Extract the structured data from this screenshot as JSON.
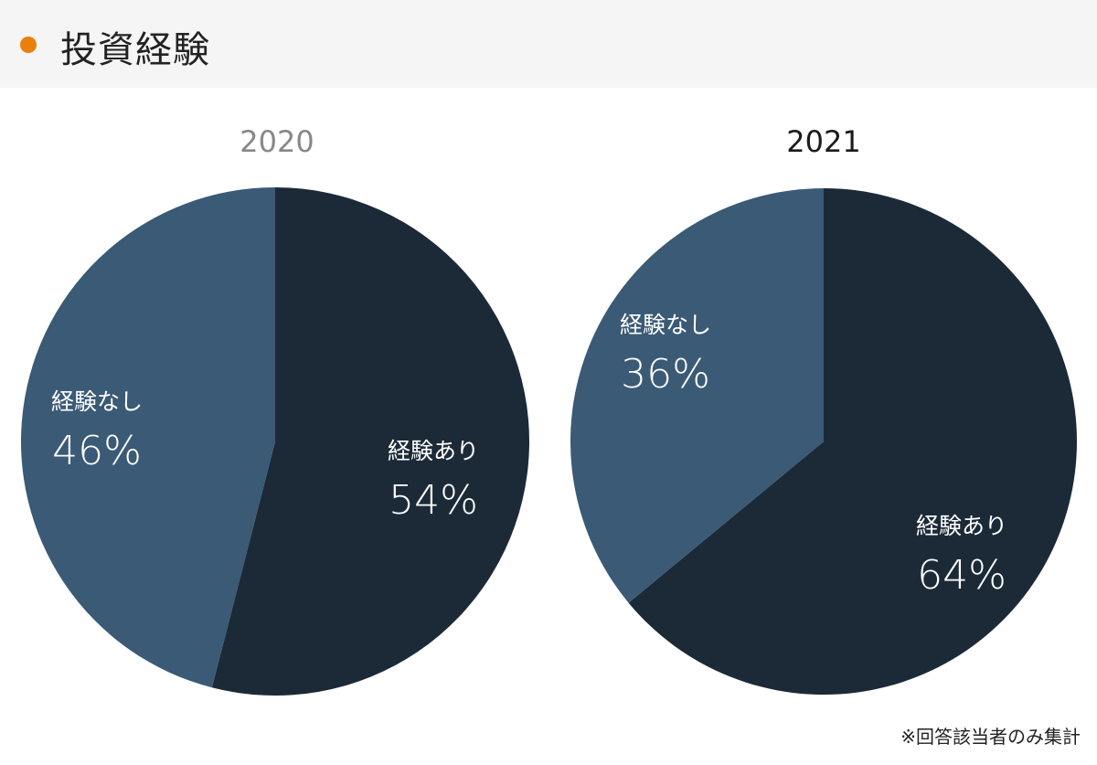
{
  "header": {
    "title": "投資経験",
    "bullet_color": "#e8800c"
  },
  "footnote": "※回答該当者のみ集計",
  "colors": {
    "experienced": "#1c2a38",
    "not_experienced": "#3a5a76"
  },
  "charts": [
    {
      "year": "2020",
      "slices": [
        {
          "label": "経験あり",
          "value": 54,
          "text": "54%"
        },
        {
          "label": "経験なし",
          "value": 46,
          "text": "46%"
        }
      ]
    },
    {
      "year": "2021",
      "slices": [
        {
          "label": "経験あり",
          "value": 64,
          "text": "64%"
        },
        {
          "label": "経験なし",
          "value": 36,
          "text": "36%"
        }
      ]
    }
  ],
  "chart_data": [
    {
      "type": "pie",
      "title": "2020",
      "categories": [
        "経験あり",
        "経験なし"
      ],
      "values": [
        54,
        46
      ],
      "unit": "%"
    },
    {
      "type": "pie",
      "title": "2021",
      "categories": [
        "経験あり",
        "経験なし"
      ],
      "values": [
        64,
        36
      ],
      "unit": "%"
    }
  ]
}
